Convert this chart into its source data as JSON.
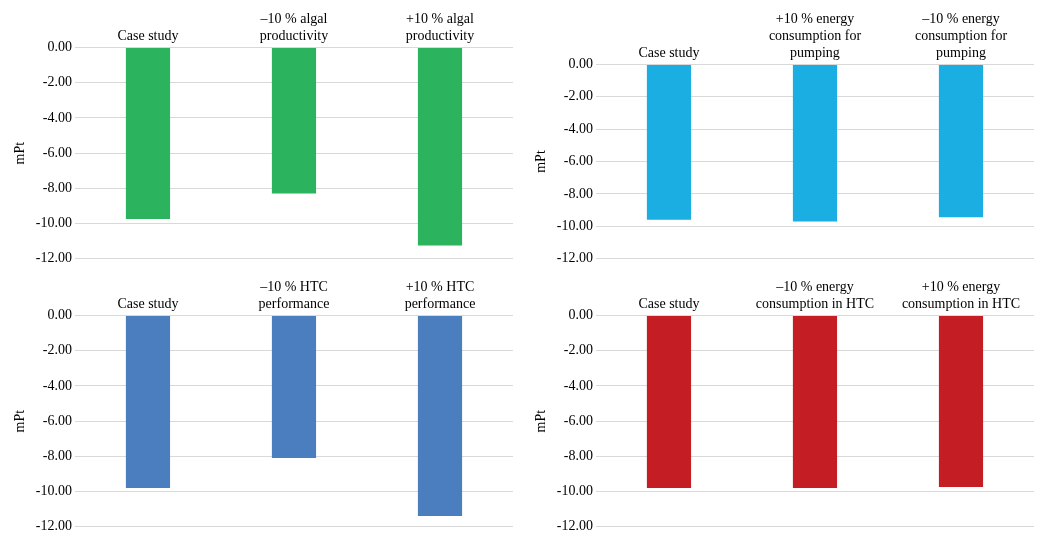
{
  "chart_data": [
    {
      "type": "bar",
      "categories": [
        "Case study",
        "–10 % algal productivity",
        "+10 % algal productivity"
      ],
      "values": [
        -9.75,
        -8.3,
        -11.25
      ],
      "color": "#2bb35e",
      "ylabel": "mPt",
      "ylim": [
        -12,
        0
      ],
      "yticks": [
        {
          "value": 0,
          "label": "0.00"
        },
        {
          "value": -2,
          "label": "-2.00"
        },
        {
          "value": -4,
          "label": "-4.00"
        },
        {
          "value": -6,
          "label": "-6.00"
        },
        {
          "value": -8,
          "label": "-8.00"
        },
        {
          "value": -10,
          "label": "-10.00"
        },
        {
          "value": -12,
          "label": "-12.00"
        }
      ],
      "grid": "y"
    },
    {
      "type": "bar",
      "categories": [
        "Case study",
        "+10 % energy consumption for pumping",
        "–10 % energy consumption for pumping"
      ],
      "values": [
        -9.6,
        -9.7,
        -9.45
      ],
      "color": "#1aaee3",
      "ylabel": "mPt",
      "ylim": [
        -12,
        0
      ],
      "yticks": [
        {
          "value": 0,
          "label": "0.00"
        },
        {
          "value": -2,
          "label": "-2.00"
        },
        {
          "value": -4,
          "label": "-4.00"
        },
        {
          "value": -6,
          "label": "-6.00"
        },
        {
          "value": -8,
          "label": "-8.00"
        },
        {
          "value": -10,
          "label": "-10.00"
        },
        {
          "value": -12,
          "label": "-12.00"
        }
      ],
      "grid": "y"
    },
    {
      "type": "bar",
      "categories": [
        "Case study",
        "–10 % HTC performance",
        "+10 % HTC performance"
      ],
      "values": [
        -9.8,
        -8.1,
        -11.4
      ],
      "color": "#4a7ebf",
      "ylabel": "mPt",
      "ylim": [
        -12,
        0
      ],
      "yticks": [
        {
          "value": 0,
          "label": "0.00"
        },
        {
          "value": -2,
          "label": "-2.00"
        },
        {
          "value": -4,
          "label": "-4.00"
        },
        {
          "value": -6,
          "label": "-6.00"
        },
        {
          "value": -8,
          "label": "-8.00"
        },
        {
          "value": -10,
          "label": "-10.00"
        },
        {
          "value": -12,
          "label": "-12.00"
        }
      ],
      "grid": "y"
    },
    {
      "type": "bar",
      "categories": [
        "Case study",
        "–10 % energy consumption in HTC",
        "+10 % energy consumption in HTC"
      ],
      "values": [
        -9.8,
        -9.8,
        -9.75
      ],
      "color": "#c41e24",
      "ylabel": "mPt",
      "ylim": [
        -12,
        0
      ],
      "yticks": [
        {
          "value": 0,
          "label": "0.00"
        },
        {
          "value": -2,
          "label": "-2.00"
        },
        {
          "value": -4,
          "label": "-4.00"
        },
        {
          "value": -6,
          "label": "-6.00"
        },
        {
          "value": -8,
          "label": "-8.00"
        },
        {
          "value": -10,
          "label": "-10.00"
        },
        {
          "value": -12,
          "label": "-12.00"
        }
      ],
      "grid": "y"
    }
  ]
}
